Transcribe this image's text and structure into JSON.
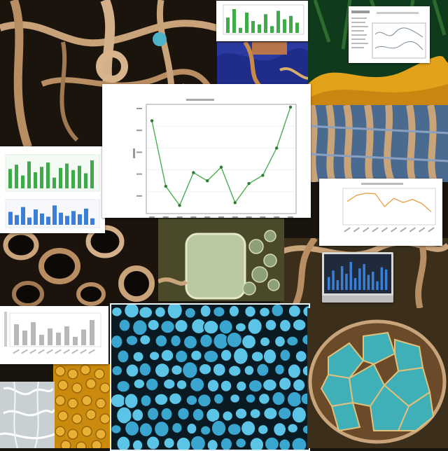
{
  "palette": {
    "tissue_dark": "#1a140e",
    "tissue_tan": "#c9a37a",
    "gold": "#e2a21a",
    "cell_blue": "#3aa6d0",
    "cell_teal": "#3fb0b8",
    "navy": "#2a3aa0",
    "line_green": "#4caf50",
    "line_orange": "#e6a04a",
    "bar_blue": "#3a7fd5",
    "bar_green": "#3faa4a",
    "bar_grey": "#b8b8b8"
  },
  "main_chart": {
    "chart_data": {
      "type": "line",
      "title": "",
      "xlabel": "",
      "ylabel": "",
      "series": [
        {
          "values": [
            68,
            20,
            6,
            30,
            24,
            34,
            8,
            22,
            28,
            48,
            78
          ]
        }
      ],
      "ylim": [
        0,
        80
      ],
      "grid": true
    }
  },
  "small_charts": {
    "top_bar": {
      "type": "bar",
      "values": [
        9,
        14,
        3,
        12,
        7,
        5,
        11,
        4,
        13,
        8,
        10,
        6
      ]
    },
    "left_bars": {
      "type": "bar",
      "values": [
        18,
        22,
        12,
        25,
        15,
        20,
        24,
        10,
        19,
        23,
        17,
        21,
        14,
        26
      ]
    },
    "right_line": {
      "type": "line",
      "values": [
        40,
        52,
        56,
        55,
        30,
        46,
        38,
        44,
        36,
        20
      ]
    },
    "monitor_bars": {
      "type": "bar",
      "values": [
        12,
        18,
        9,
        22,
        15,
        26,
        11,
        20,
        24,
        14,
        17,
        8,
        21,
        19
      ]
    },
    "bottom_left_bars": {
      "type": "bar",
      "values": [
        20,
        14,
        22,
        10,
        16,
        12,
        18,
        8,
        15,
        24
      ]
    }
  }
}
